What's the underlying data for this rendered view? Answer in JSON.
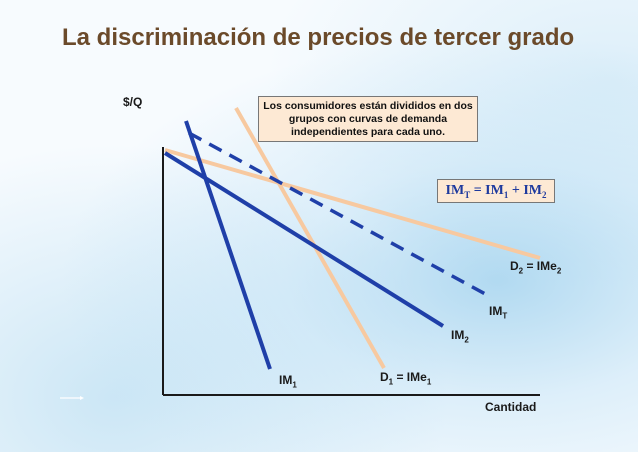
{
  "title": "La discriminación de precios de tercer grado",
  "y_axis_label": "$/Q",
  "x_axis_label": "Cantidad",
  "note_text": "Los consumidores están divididos en dos grupos con curvas de demanda independientes para cada uno.",
  "formula": {
    "text": "IM",
    "sub_t": "T",
    "eq": " = IM",
    "sub_1": "1",
    "plus": " + IM",
    "sub_2": "2"
  },
  "curve_labels": {
    "d2": {
      "main": "D",
      "sub": "2",
      "rest": " = IMe",
      "sub2": "2"
    },
    "imt": {
      "main": "IM",
      "sub": "T"
    },
    "im2": {
      "main": "IM",
      "sub": "2"
    },
    "im1": {
      "main": "IM",
      "sub": "1"
    },
    "d1": {
      "main": "D",
      "sub": "1",
      "rest": " = IMe",
      "sub2": "1"
    }
  },
  "colors": {
    "title": "#6b4a2a",
    "marginal_revenue": "#1f3fa8",
    "demand": "#f7c9a0",
    "axis": "#1a1a1a",
    "callout_bg": "#fde9d4"
  },
  "arrow_icon": "right-arrow-icon"
}
